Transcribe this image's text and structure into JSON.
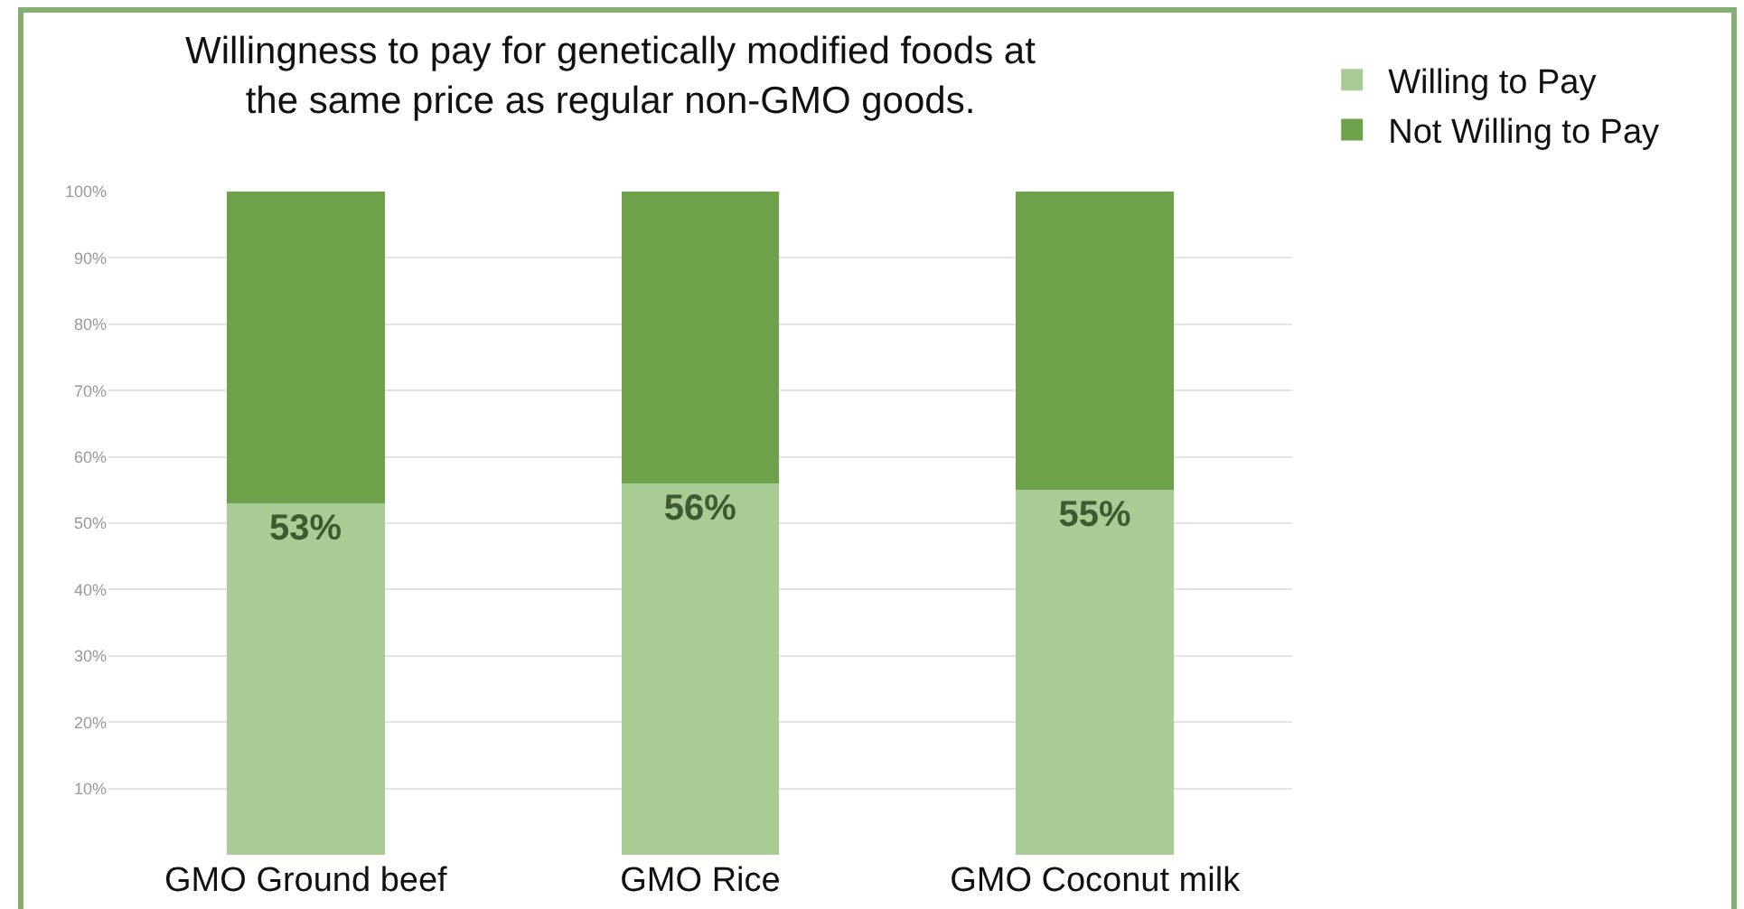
{
  "chart_data": {
    "type": "bar",
    "stacked": true,
    "title": "Willingness to pay for genetically modified foods at\nthe same price as regular non-GMO goods.",
    "categories": [
      "GMO Ground beef",
      "GMO Rice",
      "GMO Coconut milk"
    ],
    "series": [
      {
        "name": "Willing to Pay",
        "color": "#a9cb94",
        "values": [
          53,
          56,
          55
        ],
        "value_labels": [
          "53%",
          "56%",
          "55%"
        ]
      },
      {
        "name": "Not Willing to Pay",
        "color": "#6da14a",
        "values": [
          47,
          44,
          45
        ]
      }
    ],
    "ylim": [
      0,
      100
    ],
    "yticks": [
      {
        "value": 10,
        "label": "10%"
      },
      {
        "value": 20,
        "label": "20%"
      },
      {
        "value": 30,
        "label": "30%"
      },
      {
        "value": 40,
        "label": "40%"
      },
      {
        "value": 50,
        "label": "50%"
      },
      {
        "value": 60,
        "label": "60%"
      },
      {
        "value": 70,
        "label": "70%"
      },
      {
        "value": 80,
        "label": "80%"
      },
      {
        "value": 90,
        "label": "90%"
      },
      {
        "value": 100,
        "label": "100%"
      }
    ],
    "grid": "y",
    "legend": "top right"
  }
}
